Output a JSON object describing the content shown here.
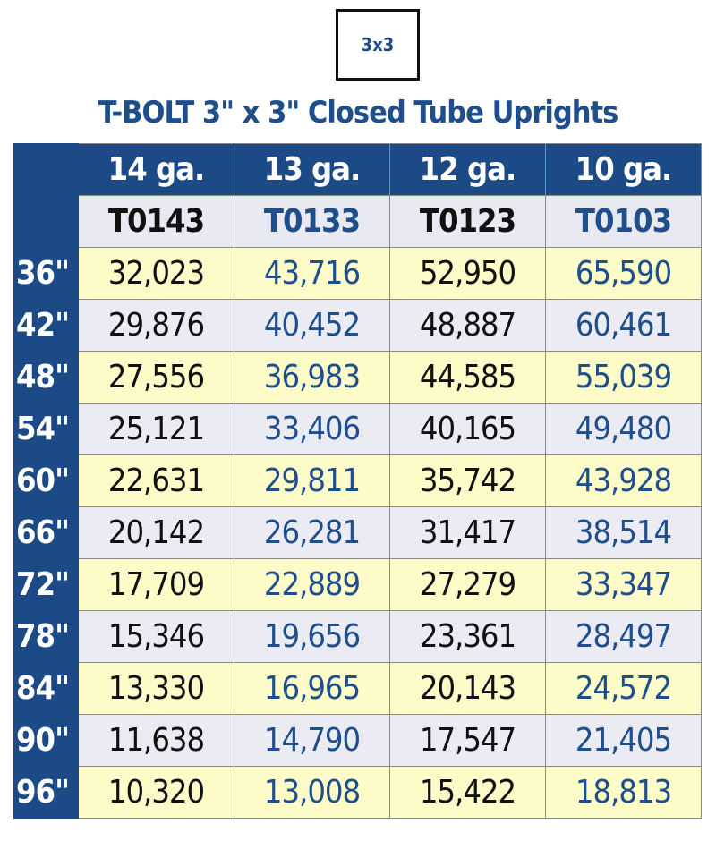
{
  "icon_label": "3x3",
  "title": "T-BOLT 3\" x 3\" Closed Tube Uprights",
  "table": {
    "header": [
      "14 ga.",
      "13 ga.",
      "12 ga.",
      "10 ga."
    ],
    "part_numbers": [
      "T0143",
      "T0133",
      "T0123",
      "T0103"
    ],
    "rows": [
      {
        "label": "36\"",
        "values": [
          "32,023",
          "43,716",
          "52,950",
          "65,590"
        ]
      },
      {
        "label": "42\"",
        "values": [
          "29,876",
          "40,452",
          "48,887",
          "60,461"
        ]
      },
      {
        "label": "48\"",
        "values": [
          "27,556",
          "36,983",
          "44,585",
          "55,039"
        ]
      },
      {
        "label": "54\"",
        "values": [
          "25,121",
          "33,406",
          "40,165",
          "49,480"
        ]
      },
      {
        "label": "60\"",
        "values": [
          "22,631",
          "29,811",
          "35,742",
          "43,928"
        ]
      },
      {
        "label": "66\"",
        "values": [
          "20,142",
          "26,281",
          "31,417",
          "38,514"
        ]
      },
      {
        "label": "72\"",
        "values": [
          "17,709",
          "22,889",
          "27,279",
          "33,347"
        ]
      },
      {
        "label": "78\"",
        "values": [
          "15,346",
          "19,656",
          "23,361",
          "28,497"
        ]
      },
      {
        "label": "84\"",
        "values": [
          "13,330",
          "16,965",
          "20,143",
          "24,572"
        ]
      },
      {
        "label": "90\"",
        "values": [
          "11,638",
          "14,790",
          "17,547",
          "21,405"
        ]
      },
      {
        "label": "96\"",
        "values": [
          "10,320",
          "13,008",
          "15,422",
          "18,813"
        ]
      }
    ]
  }
}
